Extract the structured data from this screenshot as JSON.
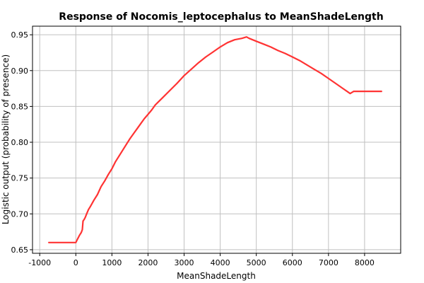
{
  "chart_data": {
    "type": "line",
    "title": "Response of Nocomis_leptocephalus to MeanShadeLength",
    "xlabel": "MeanShadeLength",
    "ylabel": "Logistic output (probability of presence)",
    "xlim": [
      -1200,
      9000
    ],
    "ylim": [
      0.645,
      0.962
    ],
    "xticks": [
      -1000,
      0,
      1000,
      2000,
      3000,
      4000,
      5000,
      6000,
      7000,
      8000
    ],
    "yticks": [
      0.65,
      0.7,
      0.75,
      0.8,
      0.85,
      0.9,
      0.95
    ],
    "grid": true,
    "series": [
      {
        "color": "#ff3333",
        "x": [
          -760,
          -100,
          0,
          50,
          100,
          150,
          180,
          200,
          230,
          260,
          300,
          350,
          400,
          500,
          600,
          700,
          800,
          900,
          1000,
          1100,
          1200,
          1300,
          1400,
          1500,
          1600,
          1700,
          1800,
          1900,
          2000,
          2100,
          2200,
          2300,
          2400,
          2600,
          2800,
          3000,
          3200,
          3400,
          3600,
          3800,
          4000,
          4200,
          4400,
          4600,
          4730,
          4800,
          5000,
          5200,
          5400,
          5600,
          5800,
          6000,
          6200,
          6400,
          6600,
          6800,
          7000,
          7200,
          7400,
          7600,
          7700,
          7800,
          8000,
          8200,
          8480
        ],
        "y": [
          0.66,
          0.66,
          0.66,
          0.665,
          0.67,
          0.674,
          0.678,
          0.69,
          0.692,
          0.695,
          0.7,
          0.706,
          0.71,
          0.719,
          0.727,
          0.738,
          0.746,
          0.755,
          0.763,
          0.773,
          0.781,
          0.789,
          0.797,
          0.805,
          0.812,
          0.819,
          0.826,
          0.833,
          0.839,
          0.845,
          0.852,
          0.857,
          0.862,
          0.872,
          0.882,
          0.893,
          0.902,
          0.911,
          0.919,
          0.926,
          0.933,
          0.939,
          0.943,
          0.945,
          0.947,
          0.945,
          0.941,
          0.937,
          0.933,
          0.928,
          0.924,
          0.919,
          0.914,
          0.908,
          0.902,
          0.896,
          0.889,
          0.882,
          0.875,
          0.868,
          0.871,
          0.871,
          0.871,
          0.871,
          0.871
        ]
      }
    ]
  }
}
